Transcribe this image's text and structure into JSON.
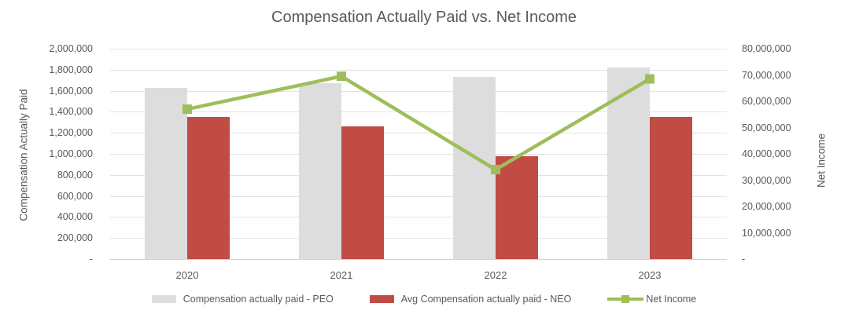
{
  "title": "Compensation Actually Paid vs. Net Income",
  "colors": {
    "background": "#FFFFFF",
    "title_text": "#595959",
    "axis_text": "#595959",
    "gridline": "#E3E3E3",
    "axis_line": "#D2D2D2",
    "peo_bar": "#DDDDDD",
    "neo_bar": "#C14B45",
    "net_income_line": "#9EBE59"
  },
  "chart_data": {
    "type": "combo-bar-line",
    "title": "Compensation Actually Paid vs. Net Income",
    "categories": [
      "2020",
      "2021",
      "2022",
      "2023"
    ],
    "series": [
      {
        "name": "Compensation actually paid - PEO",
        "type": "bar",
        "axis": "left",
        "color": "#DDDDDD",
        "values": [
          1630000,
          1670000,
          1730000,
          1820000
        ]
      },
      {
        "name": "Avg Compensation actually paid - NEO",
        "type": "bar",
        "axis": "left",
        "color": "#C14B45",
        "values": [
          1350000,
          1260000,
          980000,
          1350000
        ]
      },
      {
        "name": "Net Income",
        "type": "line",
        "axis": "right",
        "color": "#9EBE59",
        "values": [
          57000000,
          69500000,
          34000000,
          68500000
        ]
      }
    ],
    "left_axis": {
      "title": "Compensation Actually Paid",
      "min": 0,
      "max": 2000000,
      "step": 200000,
      "tick_labels": [
        "2,000,000",
        "1,800,000",
        "1,600,000",
        "1,400,000",
        "1,200,000",
        "1,000,000",
        "800,000",
        "600,000",
        "400,000",
        "200,000",
        "-"
      ]
    },
    "right_axis": {
      "title": "Net Income",
      "min": 0,
      "max": 80000000,
      "step": 10000000,
      "tick_labels": [
        "80,000,000",
        "70,000,000",
        "60,000,000",
        "50,000,000",
        "40,000,000",
        "30,000,000",
        "20,000,000",
        "10,000,000",
        "-"
      ]
    },
    "x_axis": {
      "tick_labels": [
        "2020",
        "2021",
        "2022",
        "2023"
      ]
    },
    "legend": {
      "position": "bottom",
      "entries": [
        "Compensation actually paid - PEO",
        "Avg Compensation actually paid - NEO",
        "Net Income"
      ]
    },
    "grid": true
  }
}
